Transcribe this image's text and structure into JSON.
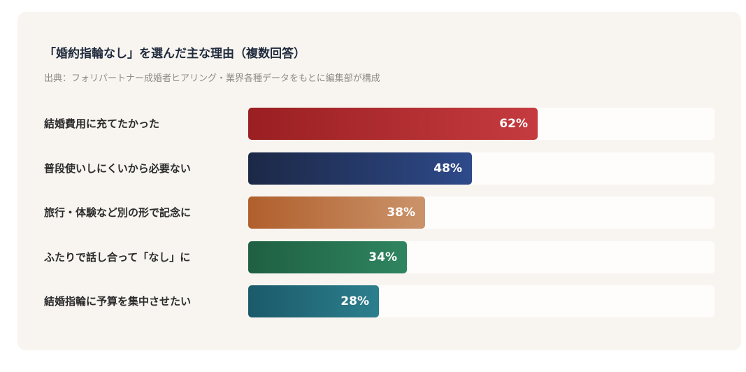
{
  "chart_data": {
    "type": "bar",
    "orientation": "horizontal",
    "title": "「婚約指輪なし」を選んだ主な理由（複数回答）",
    "subtitle": "出典：フォリパートナー成婚者ヒアリング・業界各種データをもとに編集部が構成",
    "xlim": [
      0,
      100
    ],
    "categories": [
      "結婚費用に充てたかった",
      "普段使いしにくいから必要ない",
      "旅行・体験など別の形で記念に",
      "ふたりで話し合って「なし」に",
      "結婚指輪に予算を集中させたい"
    ],
    "values": [
      62,
      48,
      38,
      34,
      28
    ],
    "value_labels": [
      "62%",
      "48%",
      "38%",
      "34%",
      "28%"
    ],
    "colors": [
      "#b02e31",
      "#24386a",
      "#be7a4b",
      "#277251",
      "#236d7c"
    ]
  }
}
